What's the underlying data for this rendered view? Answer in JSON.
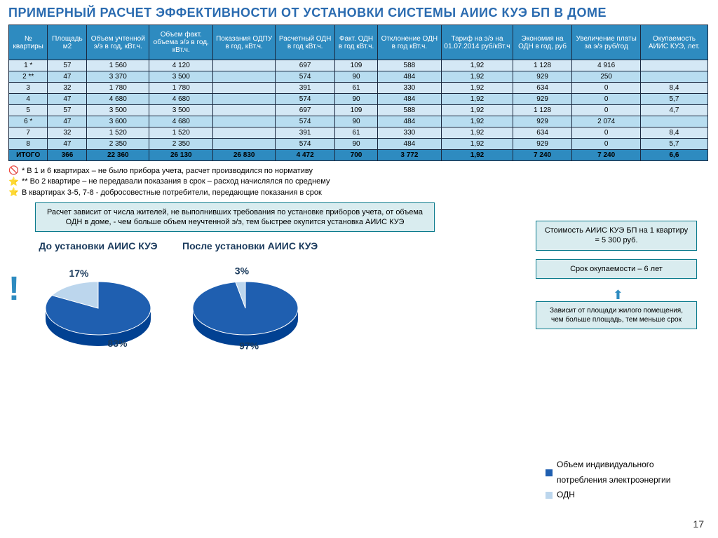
{
  "title": "ПРИМЕРНЫЙ РАСЧЕТ ЭФФЕКТИВНОСТИ ОТ УСТАНОВКИ СИСТЕМЫ АИИС КУЭ БП В ДОМЕ",
  "table": {
    "headers": [
      "№ квартиры",
      "Площадь м2",
      "Объем учтенной э/э в год, кВт.ч.",
      "Объем факт. объема э/э в год, кВт.ч.",
      "Показания ОДПУ в год, кВт.ч.",
      "Расчетный ОДН в год кВт.ч.",
      "Факт. ОДН в год кВт.ч.",
      "Отклонение ОДН в год кВт.ч.",
      "Тариф на э/э на 01.07.2014 руб/кВт.ч",
      "Экономия на ОДН в год, руб",
      "Увеличение платы за э/э руб/год",
      "Окупаемость АИИС КУЭ, лет."
    ],
    "rows": [
      [
        "1 *",
        "57",
        "1 560",
        "4 120",
        "",
        "697",
        "109",
        "588",
        "1,92",
        "1 128",
        "4 916",
        ""
      ],
      [
        "2 **",
        "47",
        "3 370",
        "3 500",
        "",
        "574",
        "90",
        "484",
        "1,92",
        "929",
        "250",
        ""
      ],
      [
        "3",
        "32",
        "1 780",
        "1 780",
        "",
        "391",
        "61",
        "330",
        "1,92",
        "634",
        "0",
        "8,4"
      ],
      [
        "4",
        "47",
        "4 680",
        "4 680",
        "",
        "574",
        "90",
        "484",
        "1,92",
        "929",
        "0",
        "5,7"
      ],
      [
        "5",
        "57",
        "3 500",
        "3 500",
        "",
        "697",
        "109",
        "588",
        "1,92",
        "1 128",
        "0",
        "4,7"
      ],
      [
        "6 *",
        "47",
        "3 600",
        "4 680",
        "",
        "574",
        "90",
        "484",
        "1,92",
        "929",
        "2 074",
        ""
      ],
      [
        "7",
        "32",
        "1 520",
        "1 520",
        "",
        "391",
        "61",
        "330",
        "1,92",
        "634",
        "0",
        "8,4"
      ],
      [
        "8",
        "47",
        "2 350",
        "2 350",
        "",
        "574",
        "90",
        "484",
        "1,92",
        "929",
        "0",
        "5,7"
      ]
    ],
    "footer": [
      "ИТОГО",
      "366",
      "22 360",
      "26 130",
      "26 830",
      "4 472",
      "700",
      "3 772",
      "1,92",
      "7 240",
      "7 240",
      "6,6"
    ],
    "header_bg": "#2e8bc0",
    "row_odd_bg": "#d4e8f5",
    "row_even_bg": "#b8ddf0",
    "border_color": "#1a2940"
  },
  "notes": {
    "n1": "* В 1 и 6 квартирах – не было прибора учета, расчет производился по нормативу",
    "n2": "** Во 2 квартире – не передавали показания в срок – расход начислялся по среднему",
    "n3": "В квартирах 3-5, 7-8 - добросовестные потребители, передающие показания в срок",
    "icon1": "🚫",
    "icon2": "⭐",
    "icon3": "⭐"
  },
  "main_note": "Расчет зависит от числа жителей, не выполнивших требования по установке приборов учета, от объема ОДН в доме, - чем больше объем неучтенной э/э, тем быстрее окупится установка АИИС КУЭ",
  "cost_box": "Стоимость АИИС КУЭ БП на 1 квартиру = 5 300 руб.",
  "payback_box": "Срок окупаемости – 6 лет",
  "depends_box": "Зависит от площади жилого помещения, чем больше площадь, тем меньше срок",
  "charts": {
    "before": {
      "title": "До установки АИИС КУЭ",
      "type": "pie",
      "slices": [
        {
          "label": "83%",
          "value": 83,
          "color": "#1f5fb0"
        },
        {
          "label": "17%",
          "value": 17,
          "color": "#bcd6ed"
        }
      ]
    },
    "after": {
      "title": "После установки АИИС КУЭ",
      "type": "pie",
      "slices": [
        {
          "label": "97%",
          "value": 97,
          "color": "#1f5fb0"
        },
        {
          "label": "3%",
          "value": 3,
          "color": "#bcd6ed"
        }
      ]
    }
  },
  "legend": {
    "item1": {
      "label": "Объем индивидуального потребления электроэнергии",
      "color": "#1f5fb0"
    },
    "item2": {
      "label": "ОДН",
      "color": "#bcd6ed"
    }
  },
  "page_num": "17",
  "colors": {
    "title": "#2a6bb0",
    "box_border": "#0a7a8c",
    "box_bg": "#d9ecef"
  }
}
